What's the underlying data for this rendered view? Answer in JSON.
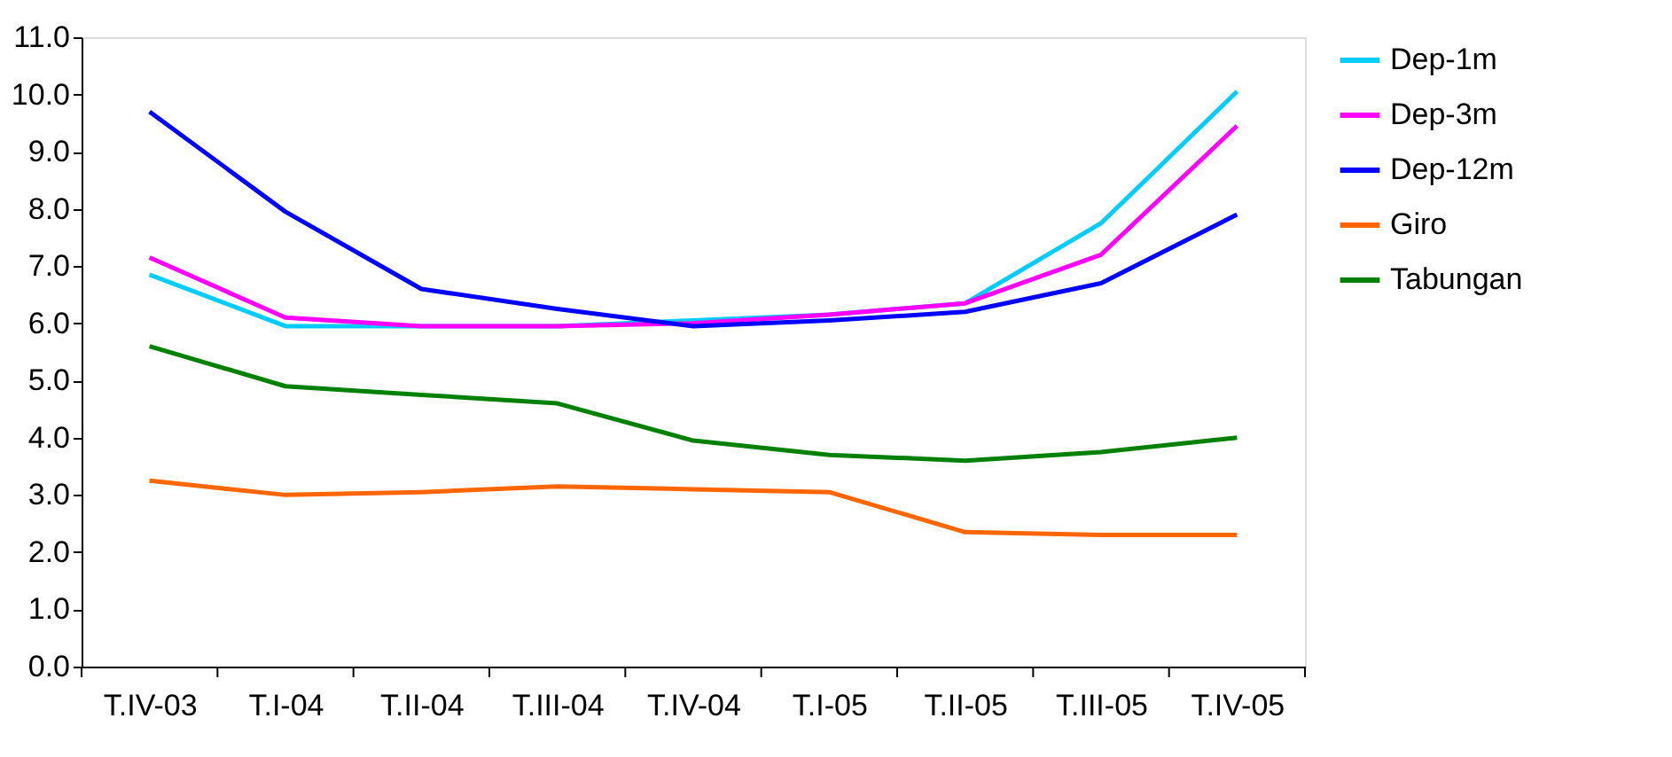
{
  "chart_data": {
    "type": "line",
    "categories": [
      "T.IV-03",
      "T.I-04",
      "T.II-04",
      "T.III-04",
      "T.IV-04",
      "T.I-05",
      "T.II-05",
      "T.III-05",
      "T.IV-05"
    ],
    "series": [
      {
        "name": "Dep-1m",
        "color": "#00ccff",
        "values": [
          6.85,
          5.95,
          5.95,
          5.95,
          6.05,
          6.15,
          6.35,
          7.75,
          10.05
        ]
      },
      {
        "name": "Dep-3m",
        "color": "#ff00ff",
        "values": [
          7.15,
          6.1,
          5.95,
          5.95,
          6.0,
          6.15,
          6.35,
          7.2,
          9.45
        ]
      },
      {
        "name": "Dep-12m",
        "color": "#0000ff",
        "values": [
          9.7,
          7.95,
          6.6,
          6.25,
          5.95,
          6.05,
          6.2,
          6.7,
          7.9
        ]
      },
      {
        "name": "Giro",
        "color": "#ff6600",
        "values": [
          3.25,
          3.0,
          3.05,
          3.15,
          3.1,
          3.05,
          2.35,
          2.3,
          2.3
        ]
      },
      {
        "name": "Tabungan",
        "color": "#008000",
        "values": [
          5.6,
          4.9,
          4.75,
          4.6,
          3.95,
          3.7,
          3.6,
          3.75,
          4.0
        ]
      }
    ],
    "ylim": [
      0,
      11
    ],
    "yticks": [
      {
        "value": 0,
        "label": "0.0"
      },
      {
        "value": 1,
        "label": "1.0"
      },
      {
        "value": 2,
        "label": "2.0"
      },
      {
        "value": 3,
        "label": "3.0"
      },
      {
        "value": 4,
        "label": "4.0"
      },
      {
        "value": 5,
        "label": "5.0"
      },
      {
        "value": 6,
        "label": "6.0"
      },
      {
        "value": 7,
        "label": "7.0"
      },
      {
        "value": 8,
        "label": "8.0"
      },
      {
        "value": 9,
        "label": "9.0"
      },
      {
        "value": 10,
        "label": "10.0"
      },
      {
        "value": 11,
        "label": "11.0"
      }
    ],
    "grid": false,
    "legend": "right",
    "marker": "none",
    "line_style": "solid"
  }
}
